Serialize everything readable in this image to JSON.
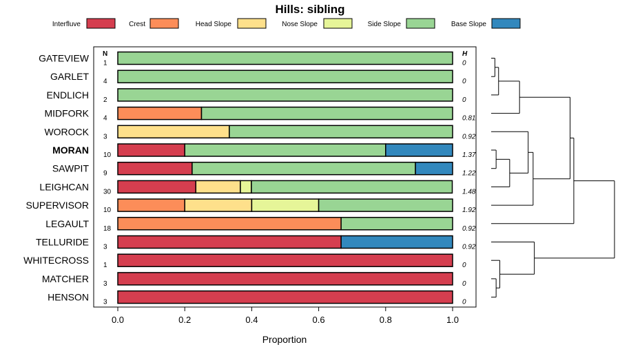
{
  "chart_data": {
    "type": "bar",
    "orientation": "horizontal-stacked-proportion",
    "title": "Hills: sibling",
    "xlabel": "Proportion",
    "xlim": [
      0,
      1
    ],
    "xticks": [
      "0.0",
      "0.2",
      "0.4",
      "0.6",
      "0.8",
      "1.0"
    ],
    "n_header": "N",
    "h_header": "H",
    "legend": [
      {
        "name": "Interfluve",
        "color": "#D53E4F"
      },
      {
        "name": "Crest",
        "color": "#FC8D59"
      },
      {
        "name": "Head Slope",
        "color": "#FEE08B"
      },
      {
        "name": "Nose Slope",
        "color": "#E6F598"
      },
      {
        "name": "Side Slope",
        "color": "#99D594"
      },
      {
        "name": "Base Slope",
        "color": "#3288BD"
      }
    ],
    "rows": [
      {
        "label": "GATEVIEW",
        "n": "1",
        "h": "0",
        "bold": false,
        "values": [
          0,
          0,
          0,
          0,
          1.0,
          0
        ]
      },
      {
        "label": "GARLET",
        "n": "4",
        "h": "0",
        "bold": false,
        "values": [
          0,
          0,
          0,
          0,
          1.0,
          0
        ]
      },
      {
        "label": "ENDLICH",
        "n": "2",
        "h": "0",
        "bold": false,
        "values": [
          0,
          0,
          0,
          0,
          1.0,
          0
        ]
      },
      {
        "label": "MIDFORK",
        "n": "4",
        "h": "0.81",
        "bold": false,
        "values": [
          0,
          0.25,
          0,
          0,
          0.75,
          0
        ]
      },
      {
        "label": "WOROCK",
        "n": "3",
        "h": "0.92",
        "bold": false,
        "values": [
          0,
          0,
          0.333,
          0,
          0.667,
          0
        ]
      },
      {
        "label": "MORAN",
        "n": "10",
        "h": "1.37",
        "bold": true,
        "values": [
          0.2,
          0,
          0,
          0,
          0.6,
          0.2
        ]
      },
      {
        "label": "SAWPIT",
        "n": "9",
        "h": "1.22",
        "bold": false,
        "values": [
          0.222,
          0,
          0,
          0,
          0.667,
          0.111
        ]
      },
      {
        "label": "LEIGHCAN",
        "n": "30",
        "h": "1.48",
        "bold": false,
        "values": [
          0.233,
          0,
          0.133,
          0.033,
          0.6,
          0
        ]
      },
      {
        "label": "SUPERVISOR",
        "n": "10",
        "h": "1.92",
        "bold": false,
        "values": [
          0,
          0.2,
          0.2,
          0.2,
          0.4,
          0
        ]
      },
      {
        "label": "LEGAULT",
        "n": "18",
        "h": "0.92",
        "bold": false,
        "values": [
          0,
          0.667,
          0,
          0,
          0.333,
          0
        ]
      },
      {
        "label": "TELLURIDE",
        "n": "3",
        "h": "0.92",
        "bold": false,
        "values": [
          0.667,
          0,
          0,
          0,
          0,
          0.333
        ]
      },
      {
        "label": "WHITECROSS",
        "n": "1",
        "h": "0",
        "bold": false,
        "values": [
          1.0,
          0,
          0,
          0,
          0,
          0
        ]
      },
      {
        "label": "MATCHER",
        "n": "3",
        "h": "0",
        "bold": false,
        "values": [
          1.0,
          0,
          0,
          0,
          0,
          0
        ]
      },
      {
        "label": "HENSON",
        "n": "3",
        "h": "0",
        "bold": false,
        "values": [
          1.0,
          0,
          0,
          0,
          0,
          0
        ]
      }
    ],
    "dendrogram_merges": [
      {
        "rows": [
          0,
          1
        ],
        "height": 0.03
      },
      {
        "rows": [
          0,
          1,
          2
        ],
        "height": 0.06
      },
      {
        "rows": [
          0,
          1,
          2,
          3
        ],
        "height": 0.23
      },
      {
        "rows": [
          5,
          6
        ],
        "height": 0.04
      },
      {
        "rows": [
          5,
          6,
          7
        ],
        "height": 0.15
      },
      {
        "rows": [
          5,
          6,
          7,
          4
        ],
        "height": 0.3
      },
      {
        "rows": [
          5,
          6,
          7,
          4,
          8
        ],
        "height": 0.34
      },
      {
        "rows": [
          0,
          1,
          2,
          3,
          5,
          6,
          7,
          4,
          8
        ],
        "height": 0.64
      },
      {
        "rows": [
          0,
          1,
          2,
          3,
          5,
          6,
          7,
          4,
          8,
          9
        ],
        "height": 0.67
      },
      {
        "rows": [
          12,
          13
        ],
        "height": 0.04
      },
      {
        "rows": [
          11,
          12,
          13
        ],
        "height": 0.07
      },
      {
        "rows": [
          10,
          11,
          12,
          13
        ],
        "height": 0.35
      },
      {
        "rows": [
          0,
          1,
          2,
          3,
          5,
          6,
          7,
          4,
          8,
          9,
          10,
          11,
          12,
          13
        ],
        "height": 1.0
      }
    ]
  }
}
